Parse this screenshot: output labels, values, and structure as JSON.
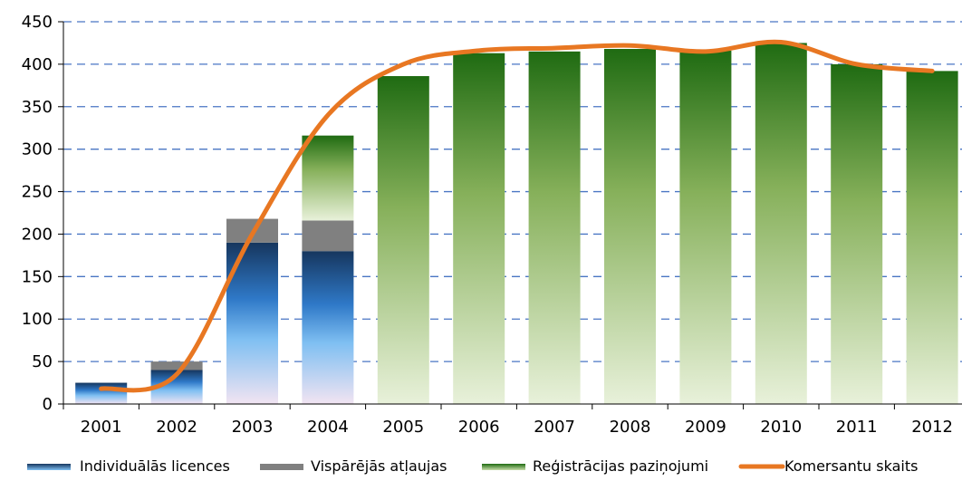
{
  "chart_data": {
    "type": "bar",
    "stacked": true,
    "categories": [
      "2001",
      "2002",
      "2003",
      "2004",
      "2005",
      "2006",
      "2007",
      "2008",
      "2009",
      "2010",
      "2011",
      "2012"
    ],
    "series": [
      {
        "name": "Individuālās licences",
        "kind": "bar",
        "values": [
          25,
          40,
          190,
          180,
          0,
          0,
          0,
          0,
          0,
          0,
          0,
          0
        ]
      },
      {
        "name": "Vispārējās atļaujas",
        "kind": "bar",
        "values": [
          0,
          10,
          28,
          36,
          0,
          0,
          0,
          0,
          0,
          0,
          0,
          0
        ]
      },
      {
        "name": "Reģistrācijas paziņojumi",
        "kind": "bar",
        "values": [
          0,
          0,
          0,
          100,
          386,
          413,
          415,
          418,
          416,
          425,
          400,
          392
        ]
      },
      {
        "name": "Komersantu skaits",
        "kind": "line",
        "values": [
          18,
          35,
          200,
          340,
          400,
          416,
          419,
          422,
          415,
          426,
          400,
          392
        ]
      }
    ],
    "ylim": [
      0,
      450
    ],
    "yticks": [
      "0",
      "50",
      "100",
      "150",
      "200",
      "250",
      "300",
      "350",
      "400",
      "450"
    ],
    "grid": true,
    "legend_position": "bottom",
    "colors": {
      "individual": "#1e6fc8",
      "general": "#808080",
      "registration": "#2e7d1e",
      "line": "#e87722",
      "grid": "#4a76c4"
    }
  }
}
